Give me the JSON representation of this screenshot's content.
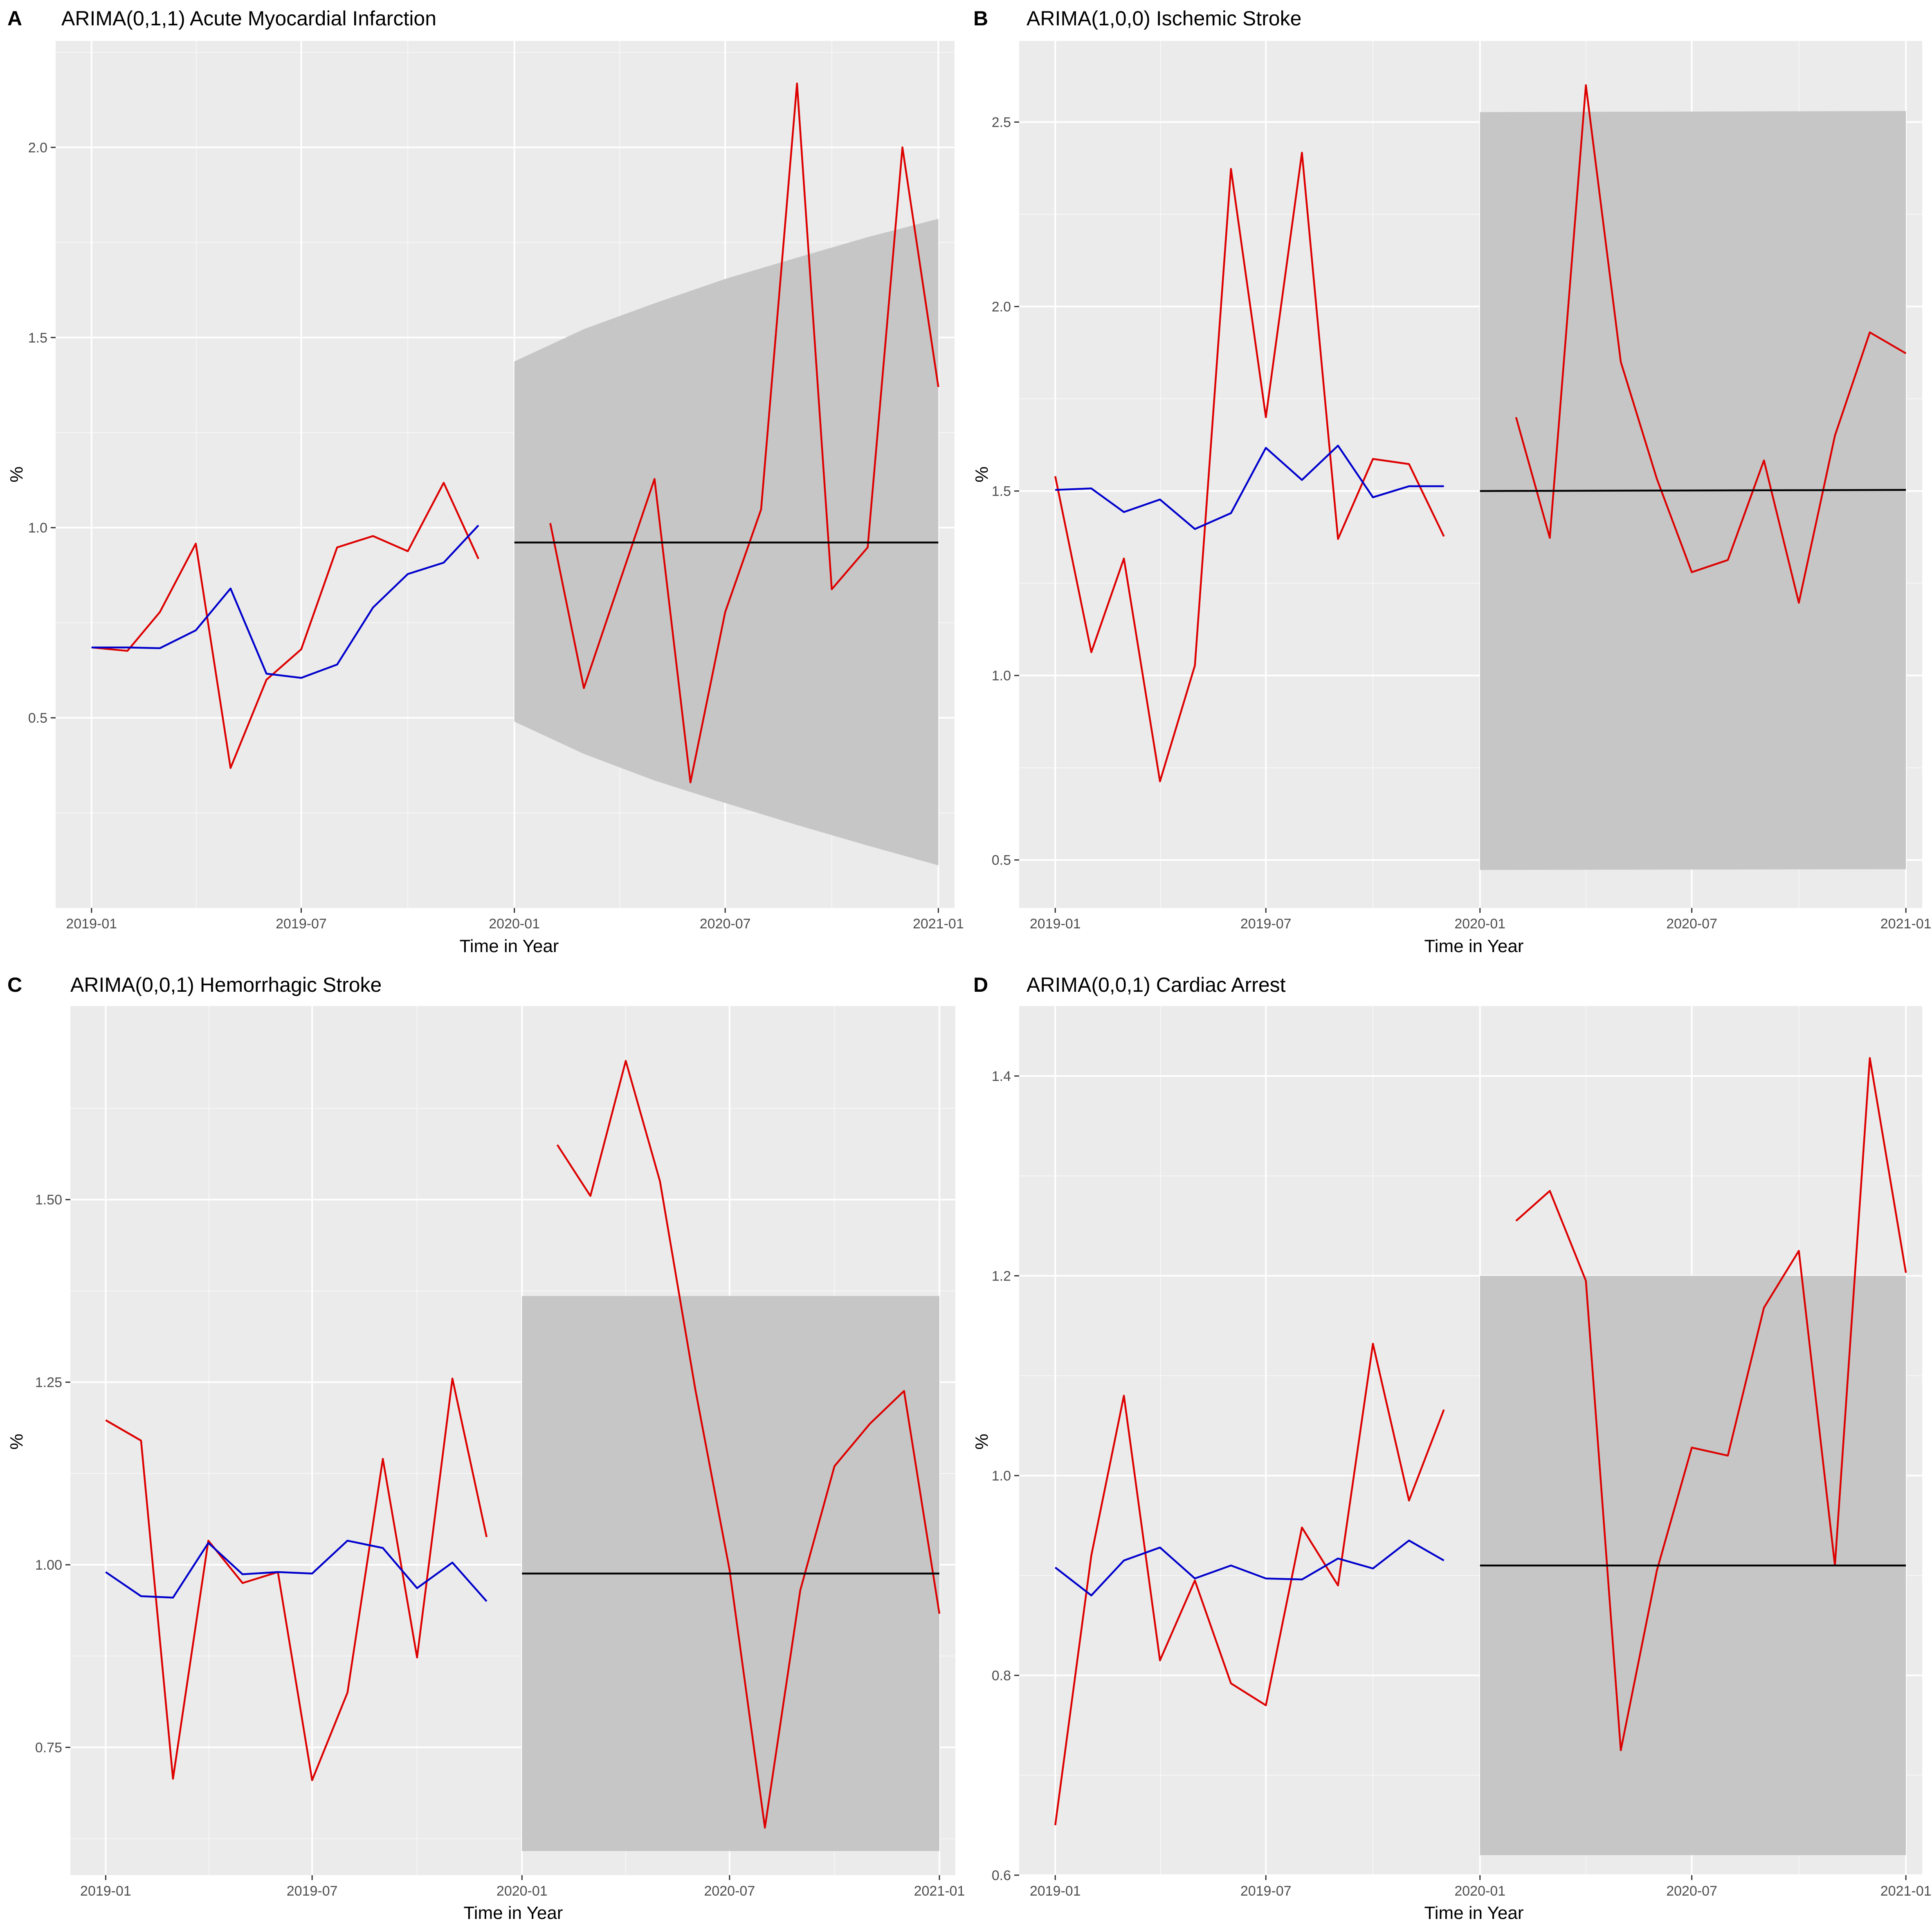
{
  "chart_data": [
    {
      "panel": "A",
      "title": "ARIMA(0,1,1) Acute Myocardial Infarction",
      "type": "line",
      "xlabel": "Time in Year",
      "ylabel": "%",
      "xlim": [
        "2018-12-01",
        "2021-01-15"
      ],
      "ylim": [
        0.0,
        2.28
      ],
      "x_ticks": [
        "2019-01",
        "2019-07",
        "2020-01",
        "2020-07",
        "2021-01"
      ],
      "y_ticks": [
        0.5,
        1.0,
        1.5,
        2.0
      ],
      "background": "#ebebeb",
      "grid": true,
      "series": [
        {
          "color": "#dd0000",
          "x": [
            "2019-01",
            "2019-02",
            "2019-03",
            "2019-04",
            "2019-05",
            "2019-06",
            "2019-07",
            "2019-08",
            "2019-09",
            "2019-10",
            "2019-11",
            "2019-12"
          ],
          "values": [
            0.685,
            0.676,
            0.778,
            0.958,
            0.368,
            0.6,
            0.68,
            0.948,
            0.978,
            0.938,
            1.118,
            0.918
          ]
        },
        {
          "color": "#dd0000",
          "x": [
            "2020-02",
            "2020-03",
            "2020-04",
            "2020-05",
            "2020-06",
            "2020-07",
            "2020-08",
            "2020-09",
            "2020-10",
            "2020-11",
            "2020-12",
            "2021-01"
          ],
          "values": [
            1.012,
            0.578,
            0.858,
            1.128,
            0.33,
            0.778,
            1.048,
            2.168,
            0.838,
            0.948,
            2.0,
            1.37
          ]
        },
        {
          "color": "#0000cc",
          "x": [
            "2019-01",
            "2019-02",
            "2019-03",
            "2019-04",
            "2019-05",
            "2019-06",
            "2019-07",
            "2019-08",
            "2019-09",
            "2019-10",
            "2019-11",
            "2019-12"
          ],
          "values": [
            0.685,
            0.685,
            0.683,
            0.73,
            0.84,
            0.616,
            0.605,
            0.64,
            0.79,
            0.878,
            0.908,
            1.006
          ]
        },
        {
          "color": "#000000",
          "x": [
            "2020-01",
            "2021-01"
          ],
          "values": [
            0.961,
            0.961
          ]
        }
      ],
      "interval": {
        "color": "#c6c6c6",
        "x": [
          "2020-01",
          "2020-03",
          "2020-05",
          "2020-07",
          "2020-09",
          "2020-11",
          "2021-01"
        ],
        "lower": [
          0.49,
          0.405,
          0.335,
          0.276,
          0.218,
          0.164,
          0.112
        ],
        "upper": [
          1.437,
          1.522,
          1.59,
          1.654,
          1.71,
          1.764,
          1.812
        ]
      }
    },
    {
      "panel": "B",
      "title": "ARIMA(1,0,0) Ischemic Stroke",
      "type": "line",
      "xlabel": "Time in Year",
      "ylabel": "%",
      "xlim": [
        "2018-12-01",
        "2021-01-15"
      ],
      "ylim": [
        0.37,
        2.72
      ],
      "x_ticks": [
        "2019-01",
        "2019-07",
        "2020-01",
        "2020-07",
        "2021-01"
      ],
      "y_ticks": [
        0.5,
        1.0,
        1.5,
        2.0,
        2.5
      ],
      "background": "#ebebeb",
      "grid": true,
      "series": [
        {
          "color": "#dd0000",
          "x": [
            "2019-01",
            "2019-02",
            "2019-03",
            "2019-04",
            "2019-05",
            "2019-06",
            "2019-07",
            "2019-08",
            "2019-09",
            "2019-10",
            "2019-11",
            "2019-12"
          ],
          "values": [
            1.54,
            1.063,
            1.317,
            0.713,
            1.027,
            2.373,
            1.7,
            2.417,
            1.37,
            1.587,
            1.573,
            1.377
          ]
        },
        {
          "color": "#dd0000",
          "x": [
            "2020-02",
            "2020-03",
            "2020-04",
            "2020-05",
            "2020-06",
            "2020-07",
            "2020-08",
            "2020-09",
            "2020-10",
            "2020-11",
            "2020-12",
            "2021-01"
          ],
          "values": [
            1.7,
            1.373,
            2.6,
            1.85,
            1.533,
            1.28,
            1.313,
            1.583,
            1.197,
            1.65,
            1.93,
            1.873
          ]
        },
        {
          "color": "#0000cc",
          "x": [
            "2019-01",
            "2019-02",
            "2019-03",
            "2019-04",
            "2019-05",
            "2019-06",
            "2019-07",
            "2019-08",
            "2019-09",
            "2019-10",
            "2019-11",
            "2019-12"
          ],
          "values": [
            1.503,
            1.507,
            1.443,
            1.477,
            1.397,
            1.44,
            1.617,
            1.53,
            1.623,
            1.483,
            1.513,
            1.513
          ]
        },
        {
          "color": "#000000",
          "x": [
            "2020-01",
            "2021-01"
          ],
          "values": [
            1.5,
            1.503
          ]
        }
      ],
      "interval": {
        "color": "#c6c6c6",
        "x": [
          "2020-01",
          "2021-01"
        ],
        "lower": [
          0.473,
          0.475
        ],
        "upper": [
          2.527,
          2.53
        ]
      }
    },
    {
      "panel": "C",
      "title": "ARIMA(0,0,1) Hemorrhagic Stroke",
      "type": "line",
      "xlabel": "Time in Year",
      "ylabel": "%",
      "xlim": [
        "2018-12-01",
        "2021-01-15"
      ],
      "ylim": [
        0.575,
        1.765
      ],
      "x_ticks": [
        "2019-01",
        "2019-07",
        "2020-01",
        "2020-07",
        "2021-01"
      ],
      "y_ticks": [
        0.75,
        1.0,
        1.25,
        1.5
      ],
      "background": "#ebebeb",
      "grid": true,
      "series": [
        {
          "color": "#dd0000",
          "x": [
            "2019-01",
            "2019-02",
            "2019-03",
            "2019-04",
            "2019-05",
            "2019-06",
            "2019-07",
            "2019-08",
            "2019-09",
            "2019-10",
            "2019-11",
            "2019-12"
          ],
          "values": [
            1.198,
            1.17,
            0.707,
            1.033,
            0.975,
            0.99,
            0.705,
            0.825,
            1.145,
            0.873,
            1.255,
            1.038
          ]
        },
        {
          "color": "#dd0000",
          "x": [
            "2020-02",
            "2020-03",
            "2020-04",
            "2020-05",
            "2020-06",
            "2020-07",
            "2020-08",
            "2020-09",
            "2020-10",
            "2020-11",
            "2020-12",
            "2021-01"
          ],
          "values": [
            1.575,
            1.505,
            1.69,
            1.525,
            1.24,
            0.993,
            0.64,
            0.965,
            1.135,
            1.193,
            1.238,
            0.933
          ]
        },
        {
          "color": "#0000cc",
          "x": [
            "2019-01",
            "2019-02",
            "2019-03",
            "2019-04",
            "2019-05",
            "2019-06",
            "2019-07",
            "2019-08",
            "2019-09",
            "2019-10",
            "2019-11",
            "2019-12"
          ],
          "values": [
            0.99,
            0.957,
            0.955,
            1.03,
            0.987,
            0.99,
            0.988,
            1.033,
            1.023,
            0.968,
            1.003,
            0.95
          ]
        },
        {
          "color": "#000000",
          "x": [
            "2020-01",
            "2021-01"
          ],
          "values": [
            0.988,
            0.988
          ]
        }
      ],
      "interval": {
        "color": "#c6c6c6",
        "x": [
          "2020-01",
          "2021-01"
        ],
        "lower": [
          0.608,
          0.608
        ],
        "upper": [
          1.368,
          1.368
        ]
      }
    },
    {
      "panel": "D",
      "title": "ARIMA(0,0,1) Cardiac Arrest",
      "type": "line",
      "xlabel": "Time in Year",
      "ylabel": "%",
      "xlim": [
        "2018-12-01",
        "2021-01-15"
      ],
      "ylim": [
        0.6,
        1.47
      ],
      "x_ticks": [
        "2019-01",
        "2019-07",
        "2020-01",
        "2020-07",
        "2021-01"
      ],
      "y_ticks": [
        0.6,
        0.8,
        1.0,
        1.2,
        1.4
      ],
      "background": "#ebebeb",
      "grid": true,
      "series": [
        {
          "color": "#dd0000",
          "x": [
            "2019-01",
            "2019-02",
            "2019-03",
            "2019-04",
            "2019-05",
            "2019-06",
            "2019-07",
            "2019-08",
            "2019-09",
            "2019-10",
            "2019-11",
            "2019-12"
          ],
          "values": [
            0.65,
            0.92,
            1.08,
            0.815,
            0.895,
            0.792,
            0.77,
            0.948,
            0.89,
            1.132,
            0.975,
            1.066
          ]
        },
        {
          "color": "#dd0000",
          "x": [
            "2020-02",
            "2020-03",
            "2020-04",
            "2020-05",
            "2020-06",
            "2020-07",
            "2020-08",
            "2020-09",
            "2020-10",
            "2020-11",
            "2020-12",
            "2021-01"
          ],
          "values": [
            1.255,
            1.285,
            1.195,
            0.725,
            0.905,
            1.028,
            1.02,
            1.168,
            1.225,
            0.91,
            1.418,
            1.203
          ]
        },
        {
          "color": "#0000cc",
          "x": [
            "2019-01",
            "2019-02",
            "2019-03",
            "2019-04",
            "2019-05",
            "2019-06",
            "2019-07",
            "2019-08",
            "2019-09",
            "2019-10",
            "2019-11",
            "2019-12"
          ],
          "values": [
            0.908,
            0.88,
            0.915,
            0.928,
            0.897,
            0.91,
            0.897,
            0.896,
            0.917,
            0.907,
            0.935,
            0.915
          ]
        },
        {
          "color": "#000000",
          "x": [
            "2020-01",
            "2021-01"
          ],
          "values": [
            0.91,
            0.91
          ]
        }
      ],
      "interval": {
        "color": "#c6c6c6",
        "x": [
          "2020-01",
          "2021-01"
        ],
        "lower": [
          0.62,
          0.62
        ],
        "upper": [
          1.2,
          1.2
        ]
      }
    }
  ]
}
